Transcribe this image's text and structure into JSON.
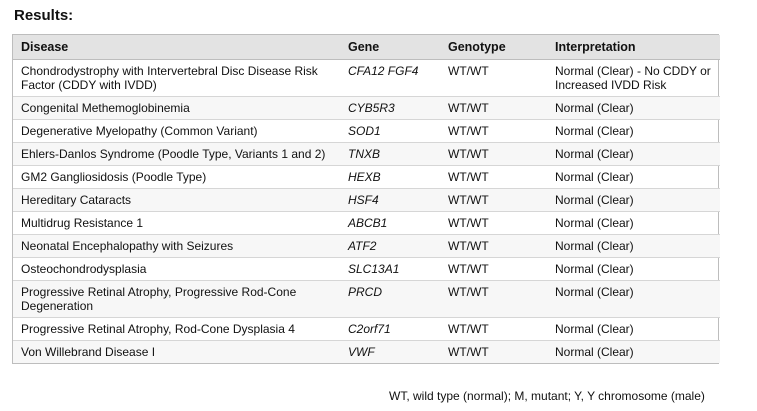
{
  "heading": "Results:",
  "table": {
    "headers": [
      "Disease",
      "Gene",
      "Genotype",
      "Interpretation"
    ],
    "rows": [
      {
        "disease": "Chondrodystrophy with Intervertebral Disc Disease Risk Factor (CDDY with IVDD)",
        "gene": "CFA12 FGF4",
        "genotype": "WT/WT",
        "interpretation": "Normal (Clear) - No CDDY or Increased IVDD Risk"
      },
      {
        "disease": "Congenital Methemoglobinemia",
        "gene": "CYB5R3",
        "genotype": "WT/WT",
        "interpretation": "Normal (Clear)"
      },
      {
        "disease": "Degenerative Myelopathy (Common Variant)",
        "gene": "SOD1",
        "genotype": "WT/WT",
        "interpretation": "Normal (Clear)"
      },
      {
        "disease": "Ehlers-Danlos Syndrome (Poodle Type, Variants 1 and 2)",
        "gene": "TNXB",
        "genotype": "WT/WT",
        "interpretation": "Normal (Clear)"
      },
      {
        "disease": "GM2 Gangliosidosis (Poodle Type)",
        "gene": "HEXB",
        "genotype": "WT/WT",
        "interpretation": "Normal (Clear)"
      },
      {
        "disease": "Hereditary Cataracts",
        "gene": "HSF4",
        "genotype": "WT/WT",
        "interpretation": "Normal (Clear)"
      },
      {
        "disease": "Multidrug Resistance 1",
        "gene": "ABCB1",
        "genotype": "WT/WT",
        "interpretation": "Normal (Clear)"
      },
      {
        "disease": "Neonatal Encephalopathy with Seizures",
        "gene": "ATF2",
        "genotype": "WT/WT",
        "interpretation": "Normal (Clear)"
      },
      {
        "disease": "Osteochondrodysplasia",
        "gene": "SLC13A1",
        "genotype": "WT/WT",
        "interpretation": "Normal (Clear)"
      },
      {
        "disease": "Progressive Retinal Atrophy, Progressive Rod-Cone Degeneration",
        "gene": "PRCD",
        "genotype": "WT/WT",
        "interpretation": "Normal (Clear)"
      },
      {
        "disease": "Progressive Retinal Atrophy, Rod-Cone Dysplasia 4",
        "gene": "C2orf71",
        "genotype": "WT/WT",
        "interpretation": "Normal (Clear)"
      },
      {
        "disease": "Von Willebrand Disease I",
        "gene": "VWF",
        "genotype": "WT/WT",
        "interpretation": "Normal (Clear)"
      }
    ]
  },
  "footnote": "WT, wild type (normal); M, mutant; Y, Y chromosome (male)"
}
